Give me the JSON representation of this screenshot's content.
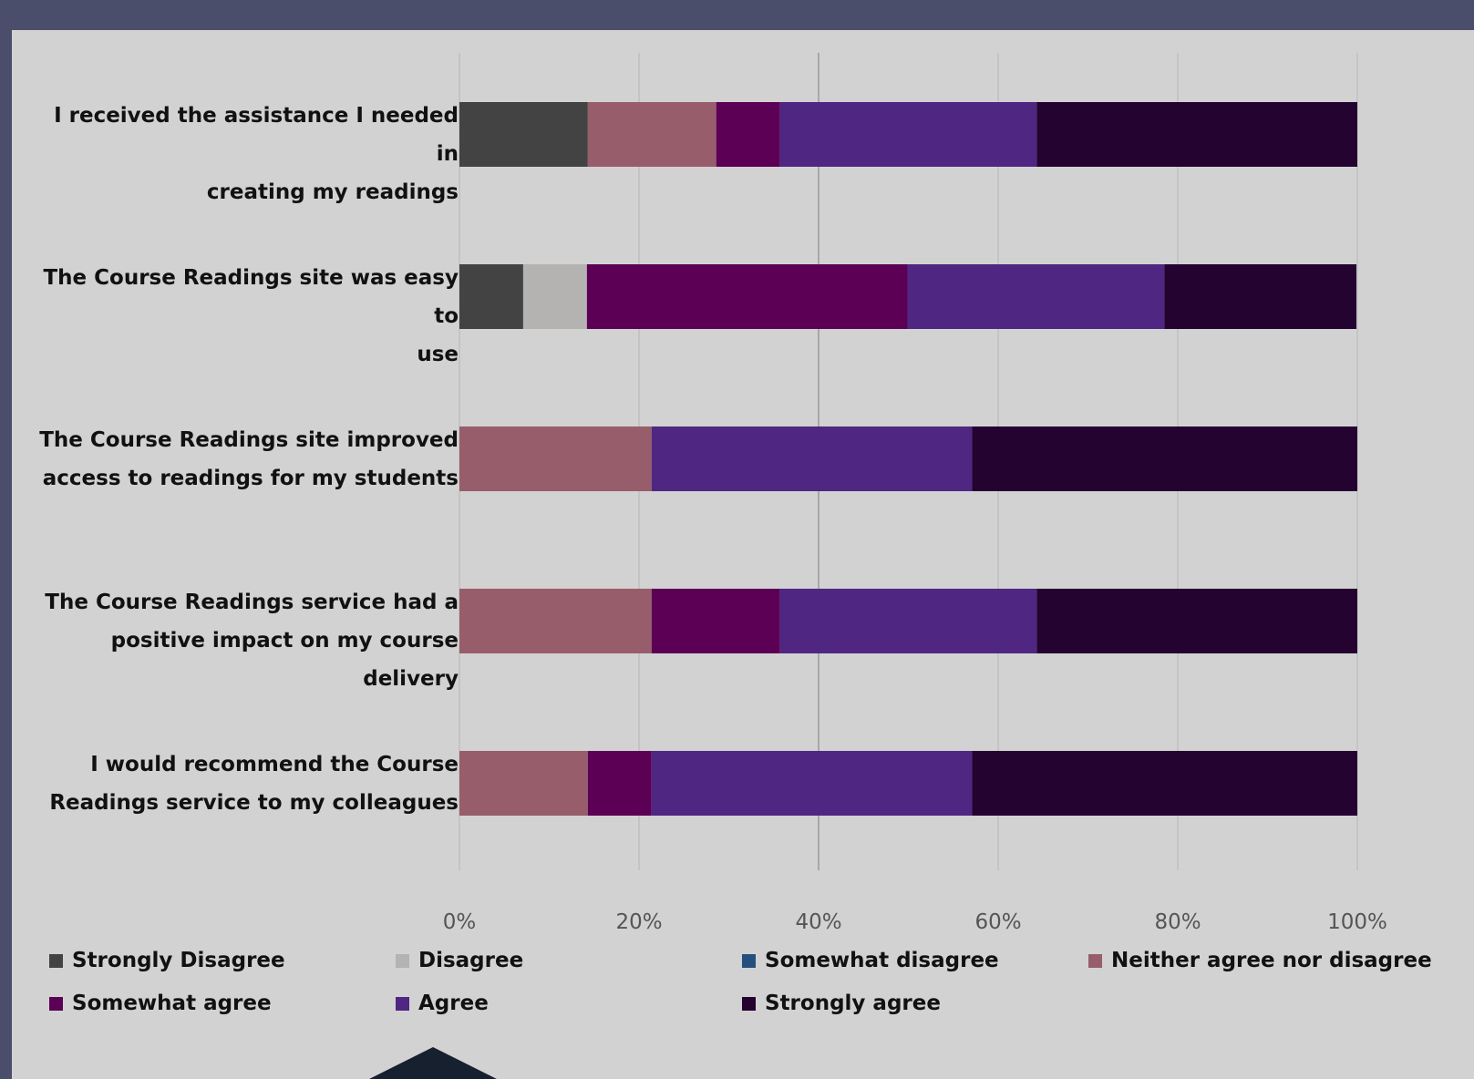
{
  "chart_data": {
    "type": "bar",
    "orientation": "horizontal",
    "stacked": "percent",
    "categories": [
      "I received the assistance I needed in creating my readings",
      "The Course Readings site was easy to use",
      "The Course Readings site improved access to readings for my students",
      "The Course Readings service had a positive impact on my course delivery",
      "I would recommend the Course Readings service to my colleagues"
    ],
    "category_lines": [
      [
        "I received the assistance I needed in",
        "creating my readings"
      ],
      [
        "The Course Readings site was easy to",
        "use"
      ],
      [
        "The Course Readings site improved",
        "access to readings for my students"
      ],
      [
        "The Course Readings service had a",
        "positive impact on my course delivery"
      ],
      [
        "I would recommend the Course",
        "Readings service to my colleagues"
      ]
    ],
    "series": [
      {
        "name": "Strongly Disagree",
        "color": "#434343",
        "values": [
          14.3,
          7.1,
          0,
          0,
          0
        ]
      },
      {
        "name": "Disagree",
        "color": "#b5b2b2",
        "values": [
          0,
          7.1,
          0,
          0,
          0
        ]
      },
      {
        "name": "Somewhat disagree",
        "color": "#24507d",
        "values": [
          0,
          0,
          0,
          0,
          0
        ]
      },
      {
        "name": "Neither agree nor disagree",
        "color": "#985d6b",
        "values": [
          14.3,
          0,
          21.4,
          21.4,
          14.3
        ]
      },
      {
        "name": "Somewhat agree",
        "color": "#5c0055",
        "values": [
          7.1,
          35.7,
          0,
          14.3,
          7.1
        ]
      },
      {
        "name": "Agree",
        "color": "#4f2782",
        "values": [
          28.6,
          28.6,
          35.7,
          28.6,
          35.7
        ]
      },
      {
        "name": "Strongly agree",
        "color": "#250331",
        "values": [
          35.7,
          21.4,
          42.9,
          35.7,
          42.9
        ]
      }
    ],
    "x_ticks": [
      "0%",
      "20%",
      "40%",
      "60%",
      "80%",
      "100%"
    ],
    "xlim": [
      0,
      100
    ],
    "grid": true,
    "legend_position": "bottom"
  }
}
